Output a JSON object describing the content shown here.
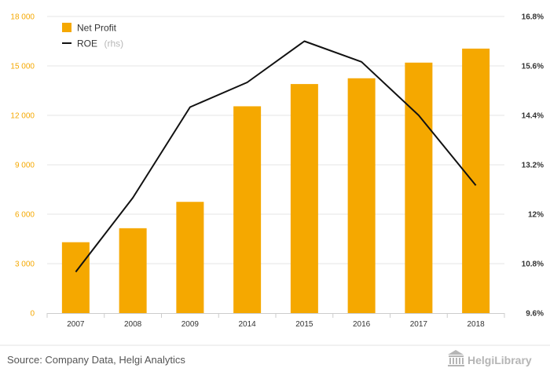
{
  "chart_data": {
    "type": "bar",
    "categories": [
      "2007",
      "2008",
      "2009",
      "2014",
      "2015",
      "2016",
      "2017",
      "2018"
    ],
    "series": [
      {
        "name": "Net Profit",
        "type": "bar",
        "axis": "left",
        "color": "#f5a800",
        "values": [
          4300,
          5150,
          6750,
          12550,
          13900,
          14250,
          15200,
          16050
        ]
      },
      {
        "name": "ROE",
        "name_suffix": "(rhs)",
        "type": "line",
        "axis": "right",
        "color": "#111111",
        "values": [
          10.6,
          12.4,
          14.6,
          15.2,
          16.2,
          15.7,
          14.4,
          12.7
        ]
      }
    ],
    "y_left": {
      "ylim": [
        0,
        18000
      ],
      "ticks": [
        0,
        3000,
        6000,
        9000,
        12000,
        15000,
        18000
      ],
      "tick_labels": [
        "0",
        "3 000",
        "6 000",
        "9 000",
        "12 000",
        "15 000",
        "18 000"
      ]
    },
    "y_right": {
      "ylim": [
        9.6,
        16.8
      ],
      "ticks": [
        9.6,
        10.8,
        12,
        13.2,
        14.4,
        15.6,
        16.8
      ],
      "tick_labels": [
        "9.6%",
        "10.8%",
        "12%",
        "13.2%",
        "14.4%",
        "15.6%",
        "16.8%"
      ]
    },
    "grid": true,
    "legend_position": "top-left"
  },
  "footer": {
    "source": "Source: Company Data, Helgi Analytics",
    "brand": "HelgiLibrary"
  }
}
